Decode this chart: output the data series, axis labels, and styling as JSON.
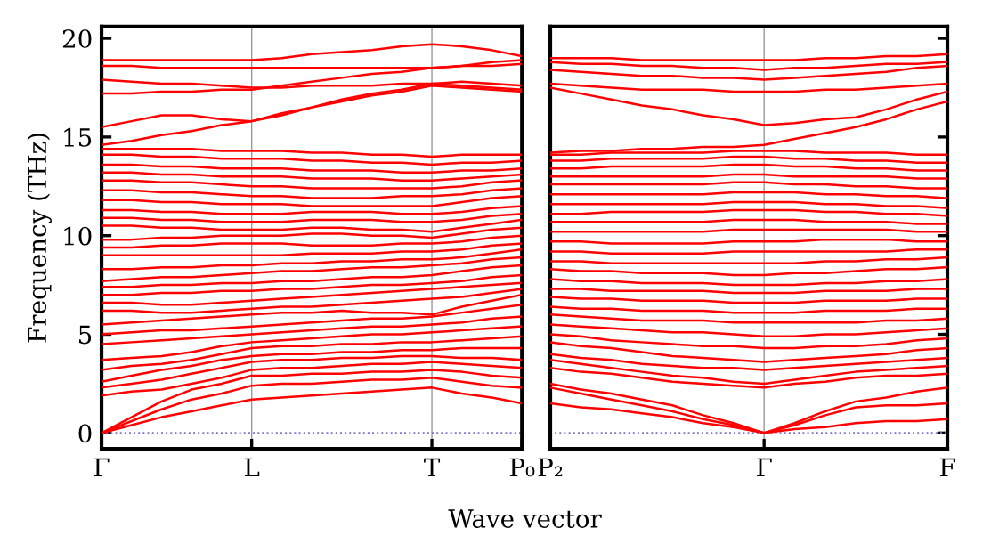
{
  "chart_data": [
    {
      "type": "line",
      "ylabel": "Frequency (THz)",
      "xlabel": "Wave vector",
      "color": "#ff0000",
      "line_style": "solid",
      "marker": "none",
      "categories": [
        "Γ",
        null,
        null,
        null,
        null,
        "L",
        null,
        null,
        null,
        null,
        null,
        "T",
        null,
        null,
        "P₀"
      ],
      "ylim": [
        -0.8,
        20.6
      ],
      "yticks": [
        0,
        5,
        10,
        15,
        20
      ],
      "ref_lines": [
        {
          "axis": "y",
          "value": 0,
          "label": null,
          "color": "#7777cc",
          "line_style": "dotted"
        },
        {
          "axis": "x",
          "value": "L",
          "label": null,
          "color": "#999999",
          "line_style": "solid"
        },
        {
          "axis": "x",
          "value": "T",
          "label": null,
          "color": "#999999",
          "line_style": "solid"
        }
      ],
      "series": [
        {
          "values": [
            0,
            0.4,
            0.8,
            1.1,
            1.4,
            1.7,
            1.8,
            1.9,
            2.0,
            2.1,
            2.2,
            2.3,
            2.0,
            1.8,
            1.5
          ]
        },
        {
          "values": [
            0,
            0.6,
            1.2,
            1.7,
            2.0,
            2.4,
            2.5,
            2.5,
            2.6,
            2.7,
            2.7,
            2.8,
            2.6,
            2.4,
            2.3
          ]
        },
        {
          "values": [
            0,
            0.8,
            1.6,
            2.2,
            2.5,
            2.9,
            2.9,
            3.0,
            3.0,
            3.1,
            3.1,
            3.2,
            3.1,
            2.9,
            2.8
          ]
        },
        {
          "values": [
            1.9,
            2.1,
            2.2,
            2.5,
            2.8,
            3.2,
            3.3,
            3.3,
            3.4,
            3.5,
            3.5,
            3.6,
            3.5,
            3.4,
            3.3
          ]
        },
        {
          "values": [
            2.3,
            2.5,
            2.7,
            3.0,
            3.3,
            3.6,
            3.7,
            3.7,
            3.8,
            3.8,
            3.9,
            3.9,
            3.8,
            3.8,
            3.7
          ]
        },
        {
          "values": [
            2.6,
            2.9,
            3.2,
            3.4,
            3.7,
            3.9,
            4.0,
            4.0,
            4.1,
            4.1,
            4.2,
            4.2,
            4.3,
            4.3,
            4.3
          ]
        },
        {
          "values": [
            3.2,
            3.4,
            3.5,
            3.7,
            4.0,
            4.3,
            4.4,
            4.4,
            4.5,
            4.5,
            4.6,
            4.6,
            4.7,
            4.8,
            4.9
          ]
        },
        {
          "values": [
            3.7,
            3.8,
            3.9,
            4.1,
            4.4,
            4.6,
            4.7,
            4.8,
            4.9,
            5.0,
            5.0,
            5.1,
            5.2,
            5.3,
            5.4
          ]
        },
        {
          "values": [
            4.5,
            4.6,
            4.7,
            4.8,
            4.9,
            5.0,
            5.1,
            5.2,
            5.3,
            5.4,
            5.4,
            5.5,
            5.6,
            5.8,
            5.9
          ]
        },
        {
          "values": [
            5.0,
            5.1,
            5.2,
            5.2,
            5.3,
            5.4,
            5.5,
            5.6,
            5.7,
            5.8,
            5.8,
            5.9,
            6.1,
            6.3,
            6.5
          ]
        },
        {
          "values": [
            5.5,
            5.6,
            5.7,
            5.8,
            5.9,
            6.0,
            6.1,
            6.1,
            6.2,
            6.1,
            6.1,
            6.0,
            6.4,
            6.7,
            7.0
          ]
        },
        {
          "values": [
            6.2,
            6.2,
            6.1,
            6.1,
            6.2,
            6.3,
            6.4,
            6.4,
            6.5,
            6.6,
            6.7,
            6.8,
            6.9,
            7.1,
            7.3
          ]
        },
        {
          "values": [
            6.6,
            6.6,
            6.5,
            6.5,
            6.6,
            6.7,
            6.8,
            6.9,
            7.0,
            7.1,
            7.2,
            7.3,
            7.4,
            7.5,
            7.6
          ]
        },
        {
          "values": [
            7.0,
            7.0,
            7.1,
            7.1,
            7.2,
            7.2,
            7.3,
            7.3,
            7.4,
            7.5,
            7.5,
            7.6,
            7.7,
            7.9,
            8.0
          ]
        },
        {
          "values": [
            7.4,
            7.4,
            7.5,
            7.5,
            7.6,
            7.6,
            7.7,
            7.7,
            7.8,
            7.9,
            7.9,
            8.0,
            8.2,
            8.4,
            8.5
          ]
        },
        {
          "values": [
            7.7,
            7.8,
            7.9,
            7.9,
            8.0,
            8.1,
            8.2,
            8.2,
            8.3,
            8.4,
            8.4,
            8.5,
            8.6,
            8.8,
            8.9
          ]
        },
        {
          "values": [
            8.3,
            8.3,
            8.4,
            8.4,
            8.5,
            8.5,
            8.6,
            8.6,
            8.7,
            8.7,
            8.8,
            8.8,
            8.9,
            9.1,
            9.3
          ]
        },
        {
          "values": [
            9.0,
            9.0,
            9.0,
            9.0,
            9.0,
            9.0,
            9.0,
            9.1,
            9.1,
            9.1,
            9.2,
            9.2,
            9.3,
            9.5,
            9.6
          ]
        },
        {
          "values": [
            9.4,
            9.4,
            9.5,
            9.5,
            9.6,
            9.6,
            9.6,
            9.5,
            9.5,
            9.5,
            9.6,
            9.6,
            9.7,
            9.9,
            10.0
          ]
        },
        {
          "values": [
            9.8,
            9.8,
            9.9,
            9.9,
            10.0,
            10.0,
            10.0,
            10.1,
            10.1,
            10.0,
            10.0,
            9.9,
            10.1,
            10.3,
            10.4
          ]
        },
        {
          "values": [
            10.5,
            10.5,
            10.4,
            10.4,
            10.3,
            10.3,
            10.3,
            10.4,
            10.4,
            10.3,
            10.3,
            10.2,
            10.4,
            10.6,
            10.8
          ]
        },
        {
          "values": [
            10.9,
            10.9,
            10.8,
            10.8,
            10.7,
            10.7,
            10.7,
            10.8,
            10.8,
            10.8,
            10.7,
            10.7,
            10.8,
            11.0,
            11.1
          ]
        },
        {
          "values": [
            11.3,
            11.3,
            11.2,
            11.2,
            11.1,
            11.1,
            11.1,
            11.2,
            11.2,
            11.2,
            11.1,
            11.1,
            11.2,
            11.4,
            11.5
          ]
        },
        {
          "values": [
            11.8,
            11.8,
            11.7,
            11.7,
            11.6,
            11.6,
            11.6,
            11.5,
            11.5,
            11.5,
            11.5,
            11.5,
            11.7,
            11.9,
            12.0
          ]
        },
        {
          "values": [
            12.3,
            12.3,
            12.2,
            12.2,
            12.1,
            12.0,
            12.0,
            11.9,
            11.9,
            11.9,
            12.0,
            12.0,
            12.1,
            12.3,
            12.4
          ]
        },
        {
          "values": [
            12.8,
            12.8,
            12.7,
            12.7,
            12.6,
            12.5,
            12.5,
            12.4,
            12.4,
            12.4,
            12.4,
            12.4,
            12.5,
            12.7,
            12.8
          ]
        },
        {
          "values": [
            13.2,
            13.2,
            13.1,
            13.1,
            13.0,
            13.0,
            13.0,
            12.9,
            12.9,
            12.9,
            12.8,
            12.8,
            12.9,
            13.0,
            13.1
          ]
        },
        {
          "values": [
            13.6,
            13.6,
            13.5,
            13.5,
            13.4,
            13.4,
            13.4,
            13.3,
            13.3,
            13.3,
            13.2,
            13.2,
            13.3,
            13.3,
            13.4
          ]
        },
        {
          "values": [
            14.1,
            14.1,
            14.0,
            14.0,
            13.9,
            13.9,
            13.9,
            13.8,
            13.8,
            13.7,
            13.7,
            13.6,
            13.7,
            13.7,
            13.8
          ]
        },
        {
          "values": [
            14.4,
            14.4,
            14.4,
            14.4,
            14.3,
            14.3,
            14.3,
            14.2,
            14.2,
            14.1,
            14.1,
            14.0,
            14.1,
            14.1,
            14.1
          ]
        },
        {
          "values": [
            14.6,
            14.8,
            15.1,
            15.3,
            15.6,
            15.8,
            16.1,
            16.5,
            16.8,
            17.1,
            17.3,
            17.6,
            17.5,
            17.4,
            17.3
          ]
        },
        {
          "values": [
            15.5,
            15.8,
            16.1,
            16.1,
            15.9,
            15.8,
            16.2,
            16.5,
            16.9,
            17.2,
            17.4,
            17.7,
            17.6,
            17.5,
            17.4
          ]
        },
        {
          "values": [
            17.2,
            17.2,
            17.3,
            17.3,
            17.4,
            17.4,
            17.6,
            17.8,
            18.0,
            18.2,
            18.3,
            18.5,
            18.6,
            18.6,
            18.7
          ]
        },
        {
          "values": [
            17.9,
            17.8,
            17.7,
            17.7,
            17.6,
            17.5,
            17.5,
            17.6,
            17.6,
            17.6,
            17.7,
            17.7,
            17.8,
            17.7,
            17.6
          ]
        },
        {
          "values": [
            18.6,
            18.6,
            18.5,
            18.5,
            18.5,
            18.5,
            18.5,
            18.5,
            18.5,
            18.5,
            18.5,
            18.5,
            18.6,
            18.8,
            18.9
          ]
        },
        {
          "values": [
            18.9,
            18.9,
            18.9,
            18.9,
            18.9,
            18.9,
            19.0,
            19.2,
            19.3,
            19.4,
            19.6,
            19.7,
            19.6,
            19.4,
            19.1
          ]
        }
      ]
    },
    {
      "type": "line",
      "color": "#ff0000",
      "tick_labels": "x",
      "line_style": "solid",
      "marker": "none",
      "categories": [
        "P₂",
        null,
        null,
        null,
        null,
        null,
        null,
        "Γ",
        null,
        null,
        null,
        null,
        null,
        "F"
      ],
      "ylim": [
        -0.8,
        20.6
      ],
      "yticks": [
        0,
        5,
        10,
        15,
        20
      ],
      "ref_lines": [
        {
          "axis": "y",
          "value": 0,
          "label": null,
          "color": "#7777cc",
          "line_style": "dotted"
        },
        {
          "axis": "x",
          "value": "Γ",
          "label": null,
          "color": "#999999",
          "line_style": "solid"
        }
      ],
      "series": [
        {
          "values": [
            1.5,
            1.3,
            1.2,
            1.0,
            0.8,
            0.5,
            0.3,
            0,
            0.2,
            0.3,
            0.5,
            0.6,
            0.6,
            0.7
          ]
        },
        {
          "values": [
            2.3,
            2.0,
            1.7,
            1.4,
            1.1,
            0.7,
            0.4,
            0,
            0.4,
            0.9,
            1.3,
            1.4,
            1.4,
            1.5
          ]
        },
        {
          "values": [
            2.5,
            2.2,
            2.0,
            1.7,
            1.4,
            0.9,
            0.5,
            0,
            0.5,
            1.1,
            1.6,
            1.8,
            2.1,
            2.3
          ]
        },
        {
          "values": [
            3.3,
            3.1,
            3.0,
            2.8,
            2.6,
            2.5,
            2.4,
            2.3,
            2.5,
            2.6,
            2.8,
            2.9,
            2.9,
            3.0
          ]
        },
        {
          "values": [
            3.7,
            3.5,
            3.3,
            3.1,
            2.9,
            2.8,
            2.6,
            2.5,
            2.7,
            2.9,
            3.1,
            3.2,
            3.3,
            3.4
          ]
        },
        {
          "values": [
            4.0,
            3.8,
            3.7,
            3.5,
            3.4,
            3.3,
            3.3,
            3.2,
            3.3,
            3.4,
            3.5,
            3.6,
            3.7,
            3.8
          ]
        },
        {
          "values": [
            4.6,
            4.4,
            4.3,
            4.1,
            3.9,
            3.8,
            3.7,
            3.6,
            3.7,
            3.8,
            3.9,
            4.0,
            4.2,
            4.3
          ]
        },
        {
          "values": [
            5.0,
            4.9,
            4.7,
            4.6,
            4.5,
            4.4,
            4.4,
            4.3,
            4.3,
            4.4,
            4.4,
            4.5,
            4.7,
            4.8
          ]
        },
        {
          "values": [
            5.5,
            5.4,
            5.3,
            5.2,
            5.1,
            5.1,
            5.0,
            4.9,
            4.9,
            5.0,
            5.0,
            5.1,
            5.2,
            5.3
          ]
        },
        {
          "values": [
            6.0,
            5.9,
            5.8,
            5.7,
            5.7,
            5.7,
            5.6,
            5.6,
            5.6,
            5.6,
            5.6,
            5.7,
            5.7,
            5.8
          ]
        },
        {
          "values": [
            6.4,
            6.3,
            6.3,
            6.2,
            6.2,
            6.2,
            6.1,
            6.1,
            6.1,
            6.2,
            6.2,
            6.2,
            6.3,
            6.3
          ]
        },
        {
          "values": [
            6.9,
            6.8,
            6.8,
            6.7,
            6.7,
            6.7,
            6.6,
            6.6,
            6.6,
            6.7,
            6.7,
            6.7,
            6.8,
            6.8
          ]
        },
        {
          "values": [
            7.3,
            7.3,
            7.2,
            7.2,
            7.2,
            7.2,
            7.1,
            7.1,
            7.1,
            7.2,
            7.2,
            7.2,
            7.3,
            7.3
          ]
        },
        {
          "values": [
            7.8,
            7.7,
            7.7,
            7.6,
            7.6,
            7.6,
            7.5,
            7.5,
            7.5,
            7.6,
            7.6,
            7.7,
            7.7,
            7.8
          ]
        },
        {
          "values": [
            8.3,
            8.2,
            8.2,
            8.1,
            8.1,
            8.1,
            8.0,
            8.0,
            8.1,
            8.1,
            8.2,
            8.3,
            8.3,
            8.4
          ]
        },
        {
          "values": [
            8.7,
            8.7,
            8.6,
            8.6,
            8.6,
            8.6,
            8.6,
            8.6,
            8.6,
            8.7,
            8.7,
            8.8,
            8.8,
            8.9
          ]
        },
        {
          "values": [
            9.2,
            9.2,
            9.1,
            9.1,
            9.1,
            9.1,
            9.2,
            9.2,
            9.2,
            9.2,
            9.2,
            9.2,
            9.3,
            9.3
          ]
        },
        {
          "values": [
            9.7,
            9.7,
            9.6,
            9.6,
            9.6,
            9.6,
            9.7,
            9.7,
            9.7,
            9.8,
            9.8,
            9.8,
            9.7,
            9.7
          ]
        },
        {
          "values": [
            10.2,
            10.2,
            10.2,
            10.2,
            10.2,
            10.2,
            10.3,
            10.3,
            10.3,
            10.3,
            10.3,
            10.3,
            10.2,
            10.2
          ]
        },
        {
          "values": [
            10.7,
            10.7,
            10.7,
            10.7,
            10.7,
            10.7,
            10.8,
            10.8,
            10.8,
            10.7,
            10.7,
            10.7,
            10.6,
            10.6
          ]
        },
        {
          "values": [
            11.1,
            11.1,
            11.2,
            11.2,
            11.2,
            11.2,
            11.3,
            11.3,
            11.3,
            11.2,
            11.2,
            11.1,
            11.1,
            11.0
          ]
        },
        {
          "values": [
            11.6,
            11.6,
            11.6,
            11.6,
            11.6,
            11.6,
            11.7,
            11.7,
            11.7,
            11.6,
            11.6,
            11.5,
            11.5,
            11.4
          ]
        },
        {
          "values": [
            12.1,
            12.1,
            12.1,
            12.1,
            12.1,
            12.1,
            12.2,
            12.2,
            12.2,
            12.1,
            12.1,
            12.0,
            12.0,
            11.9
          ]
        },
        {
          "values": [
            12.6,
            12.6,
            12.6,
            12.6,
            12.6,
            12.6,
            12.7,
            12.7,
            12.6,
            12.6,
            12.5,
            12.5,
            12.4,
            12.4
          ]
        },
        {
          "values": [
            13.0,
            13.0,
            13.0,
            13.0,
            13.0,
            13.0,
            13.1,
            13.1,
            13.0,
            13.0,
            13.0,
            13.0,
            12.9,
            12.9
          ]
        },
        {
          "values": [
            13.4,
            13.4,
            13.5,
            13.5,
            13.5,
            13.5,
            13.6,
            13.6,
            13.5,
            13.5,
            13.4,
            13.4,
            13.3,
            13.3
          ]
        },
        {
          "values": [
            13.8,
            13.8,
            13.9,
            13.9,
            13.9,
            13.9,
            14.0,
            14.0,
            13.9,
            13.9,
            13.8,
            13.8,
            13.7,
            13.7
          ]
        },
        {
          "values": [
            14.1,
            14.1,
            14.2,
            14.2,
            14.2,
            14.2,
            14.3,
            14.3,
            14.3,
            14.2,
            14.2,
            14.2,
            14.1,
            14.1
          ]
        },
        {
          "values": [
            14.2,
            14.3,
            14.3,
            14.4,
            14.4,
            14.5,
            14.5,
            14.6,
            14.9,
            15.2,
            15.5,
            15.9,
            16.4,
            16.8
          ]
        },
        {
          "values": [
            17.5,
            17.2,
            16.9,
            16.6,
            16.4,
            16.1,
            15.9,
            15.6,
            15.7,
            15.9,
            16.0,
            16.4,
            16.9,
            17.3
          ]
        },
        {
          "values": [
            17.7,
            17.6,
            17.5,
            17.4,
            17.4,
            17.4,
            17.3,
            17.3,
            17.3,
            17.4,
            17.4,
            17.5,
            17.6,
            17.7
          ]
        },
        {
          "values": [
            18.4,
            18.3,
            18.2,
            18.1,
            18.1,
            18.0,
            18.0,
            17.9,
            18.0,
            18.1,
            18.2,
            18.3,
            18.5,
            18.6
          ]
        },
        {
          "values": [
            18.8,
            18.7,
            18.7,
            18.6,
            18.6,
            18.5,
            18.5,
            18.4,
            18.5,
            18.5,
            18.6,
            18.7,
            18.7,
            18.8
          ]
        },
        {
          "values": [
            19.0,
            19.0,
            19.0,
            18.9,
            18.9,
            18.9,
            18.9,
            18.9,
            18.9,
            19.0,
            19.0,
            19.1,
            19.1,
            19.2
          ]
        }
      ]
    }
  ]
}
